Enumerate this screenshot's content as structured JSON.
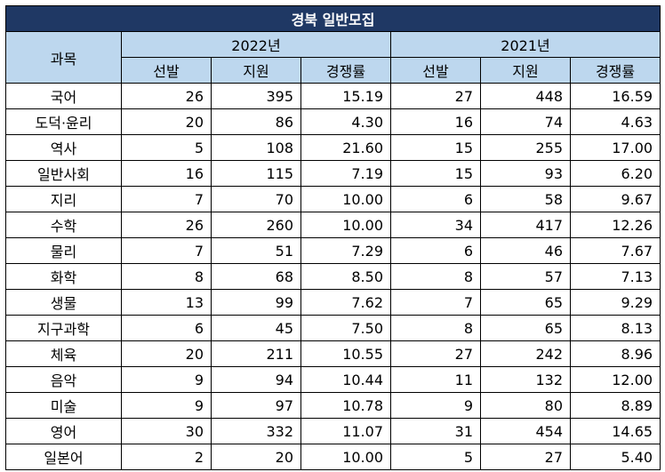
{
  "title": "경북 일반모집",
  "header": {
    "subject": "과목",
    "years": [
      "2022년",
      "2021년"
    ],
    "cols": [
      "선발",
      "지원",
      "경쟁률"
    ]
  },
  "rows": [
    {
      "subject": "국어",
      "y2022": [
        "26",
        "395",
        "15.19"
      ],
      "y2021": [
        "27",
        "448",
        "16.59"
      ]
    },
    {
      "subject": "도덕·윤리",
      "y2022": [
        "20",
        "86",
        "4.30"
      ],
      "y2021": [
        "16",
        "74",
        "4.63"
      ]
    },
    {
      "subject": "역사",
      "y2022": [
        "5",
        "108",
        "21.60"
      ],
      "y2021": [
        "15",
        "255",
        "17.00"
      ]
    },
    {
      "subject": "일반사회",
      "y2022": [
        "16",
        "115",
        "7.19"
      ],
      "y2021": [
        "15",
        "93",
        "6.20"
      ]
    },
    {
      "subject": "지리",
      "y2022": [
        "7",
        "70",
        "10.00"
      ],
      "y2021": [
        "6",
        "58",
        "9.67"
      ]
    },
    {
      "subject": "수학",
      "y2022": [
        "26",
        "260",
        "10.00"
      ],
      "y2021": [
        "34",
        "417",
        "12.26"
      ]
    },
    {
      "subject": "물리",
      "y2022": [
        "7",
        "51",
        "7.29"
      ],
      "y2021": [
        "6",
        "46",
        "7.67"
      ]
    },
    {
      "subject": "화학",
      "y2022": [
        "8",
        "68",
        "8.50"
      ],
      "y2021": [
        "8",
        "57",
        "7.13"
      ]
    },
    {
      "subject": "생물",
      "y2022": [
        "13",
        "99",
        "7.62"
      ],
      "y2021": [
        "7",
        "65",
        "9.29"
      ]
    },
    {
      "subject": "지구과학",
      "y2022": [
        "6",
        "45",
        "7.50"
      ],
      "y2021": [
        "8",
        "65",
        "8.13"
      ]
    },
    {
      "subject": "체육",
      "y2022": [
        "20",
        "211",
        "10.55"
      ],
      "y2021": [
        "27",
        "242",
        "8.96"
      ]
    },
    {
      "subject": "음악",
      "y2022": [
        "9",
        "94",
        "10.44"
      ],
      "y2021": [
        "11",
        "132",
        "12.00"
      ]
    },
    {
      "subject": "미술",
      "y2022": [
        "9",
        "97",
        "10.78"
      ],
      "y2021": [
        "9",
        "80",
        "8.89"
      ]
    },
    {
      "subject": "영어",
      "y2022": [
        "30",
        "332",
        "11.07"
      ],
      "y2021": [
        "31",
        "454",
        "14.65"
      ]
    },
    {
      "subject": "일본어",
      "y2022": [
        "2",
        "20",
        "10.00"
      ],
      "y2021": [
        "5",
        "27",
        "5.40"
      ]
    }
  ]
}
